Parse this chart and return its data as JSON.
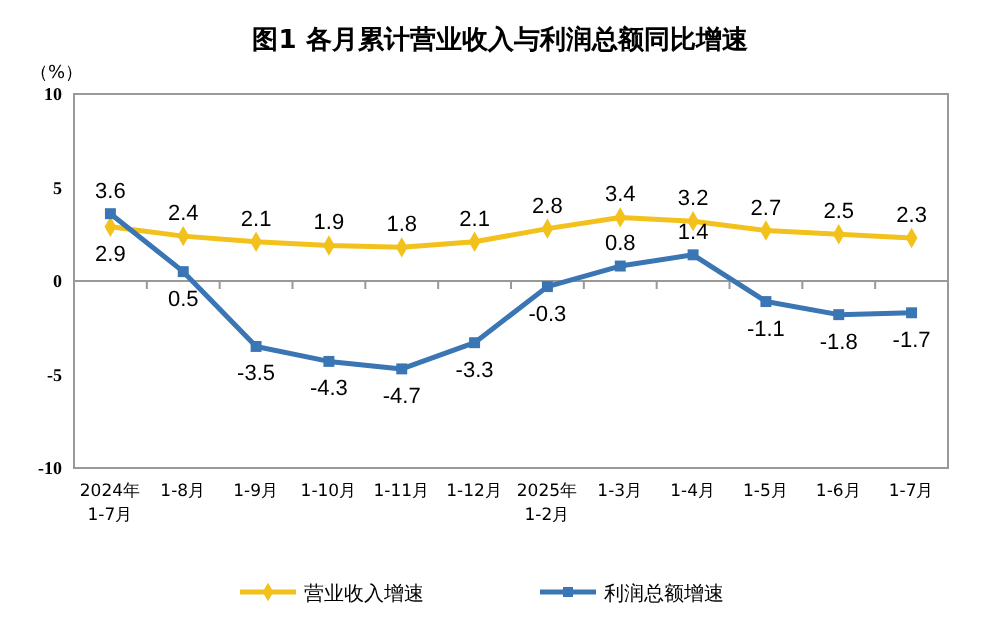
{
  "chart_data": {
    "type": "line",
    "title": "图1  各月累计营业收入与利润总额同比增速",
    "ylabel": "（%）",
    "categories": [
      "2024年\n1-7月",
      "1-8月",
      "1-9月",
      "1-10月",
      "1-11月",
      "1-12月",
      "2025年\n1-2月",
      "1-3月",
      "1-4月",
      "1-5月",
      "1-6月",
      "1-7月"
    ],
    "series": [
      {
        "name": "营业收入增速",
        "color": "#f2c11c",
        "marker": "diamond",
        "values": [
          2.9,
          2.4,
          2.1,
          1.9,
          1.8,
          2.1,
          2.8,
          3.4,
          3.2,
          2.7,
          2.5,
          2.3
        ]
      },
      {
        "name": "利润总额增速",
        "color": "#3a75b4",
        "marker": "square",
        "values": [
          3.6,
          0.5,
          -3.5,
          -4.3,
          -4.7,
          -3.3,
          -0.3,
          0.8,
          1.4,
          -1.1,
          -1.8,
          -1.7
        ]
      }
    ],
    "ylim": [
      -10,
      10
    ],
    "yticks": [
      -10,
      -5,
      0,
      5,
      10
    ],
    "legend": "bottom",
    "data_labels": true,
    "line_style": "solid"
  }
}
